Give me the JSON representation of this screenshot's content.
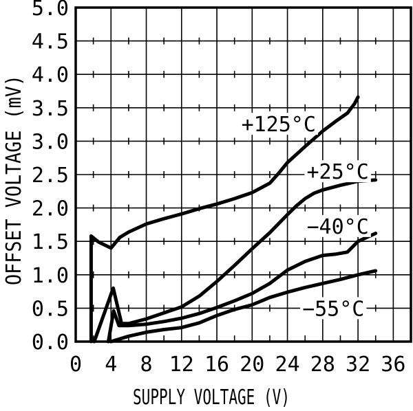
{
  "figure": {
    "background": "#ffffff",
    "ink": "#000000"
  },
  "chart_data": {
    "type": "line",
    "title": "",
    "xlabel": "SUPPLY VOLTAGE (V)",
    "ylabel": "OFFSET VOLTAGE (mV)",
    "xlim": [
      0,
      38
    ],
    "ylim": [
      0,
      5
    ],
    "grid": true,
    "legend_position": "inline-labels",
    "x_major_ticks": [
      0,
      4,
      8,
      12,
      16,
      20,
      24,
      28,
      32,
      36
    ],
    "x_tick_labels": [
      "0",
      "4",
      "8",
      "12",
      "16",
      "20",
      "24",
      "28",
      "32",
      "36"
    ],
    "x_minor_ticks": [
      2,
      6,
      10,
      14,
      18,
      22,
      26,
      30,
      34
    ],
    "y_major_ticks": [
      0,
      0.5,
      1,
      1.5,
      2,
      2.5,
      3,
      3.5,
      4,
      4.5,
      5
    ],
    "y_tick_labels": [
      "0.0",
      "0.5",
      "1.0",
      "1.5",
      "2.0",
      "2.5",
      "3.0",
      "3.5",
      "4.0",
      "4.5",
      "5.0"
    ],
    "series": [
      {
        "id": "plus-125c",
        "name": "+125°C",
        "label": "+125°C",
        "label_pos": {
          "x": 23.0,
          "y": 3.26
        },
        "points": [
          [
            1.75,
            0
          ],
          [
            1.75,
            1.58
          ],
          [
            2.6,
            1.49
          ],
          [
            4,
            1.4
          ],
          [
            5,
            1.56
          ],
          [
            6,
            1.64
          ],
          [
            8,
            1.76
          ],
          [
            10,
            1.84
          ],
          [
            12,
            1.91
          ],
          [
            14,
            1.99
          ],
          [
            16,
            2.06
          ],
          [
            18,
            2.14
          ],
          [
            20,
            2.23
          ],
          [
            22,
            2.37
          ],
          [
            23,
            2.52
          ],
          [
            24,
            2.68
          ],
          [
            26,
            2.92
          ],
          [
            28,
            3.15
          ],
          [
            29.5,
            3.3
          ],
          [
            30.8,
            3.42
          ],
          [
            31.6,
            3.56
          ],
          [
            32,
            3.66
          ]
        ]
      },
      {
        "id": "plus-25c",
        "name": "+25°C",
        "label": "+25°C",
        "label_pos": {
          "x": 29.7,
          "y": 2.55
        },
        "points": [
          [
            2.1,
            0
          ],
          [
            4.25,
            0.8
          ],
          [
            5.2,
            0.27
          ],
          [
            6,
            0.27
          ],
          [
            8,
            0.34
          ],
          [
            10,
            0.43
          ],
          [
            12,
            0.52
          ],
          [
            14,
            0.68
          ],
          [
            16,
            0.9
          ],
          [
            18,
            1.14
          ],
          [
            20,
            1.39
          ],
          [
            22,
            1.63
          ],
          [
            24,
            1.9
          ],
          [
            25,
            2.03
          ],
          [
            26,
            2.14
          ],
          [
            27,
            2.22
          ],
          [
            28,
            2.27
          ],
          [
            30,
            2.34
          ],
          [
            32,
            2.4
          ],
          [
            34,
            2.42
          ]
        ]
      },
      {
        "id": "minus-40c",
        "name": "−40°C",
        "label": "−40°C",
        "label_pos": {
          "x": 29.7,
          "y": 1.73
        },
        "points": [
          [
            3.7,
            0
          ],
          [
            4.3,
            0.46
          ],
          [
            4.9,
            0.24
          ],
          [
            6,
            0.24
          ],
          [
            8,
            0.26
          ],
          [
            10,
            0.3
          ],
          [
            12,
            0.35
          ],
          [
            14,
            0.42
          ],
          [
            16,
            0.51
          ],
          [
            18,
            0.61
          ],
          [
            20,
            0.72
          ],
          [
            22,
            0.87
          ],
          [
            24,
            1.07
          ],
          [
            26,
            1.2
          ],
          [
            28,
            1.29
          ],
          [
            29.5,
            1.31
          ],
          [
            30.8,
            1.34
          ],
          [
            32,
            1.5
          ],
          [
            34,
            1.62
          ]
        ]
      },
      {
        "id": "minus-55c",
        "name": "−55°C",
        "label": "−55°C",
        "label_pos": {
          "x": 29.2,
          "y": 0.5
        },
        "points": [
          [
            4,
            0
          ],
          [
            6,
            0.08
          ],
          [
            8,
            0.14
          ],
          [
            10,
            0.18
          ],
          [
            12,
            0.21
          ],
          [
            14,
            0.28
          ],
          [
            16,
            0.39
          ],
          [
            18,
            0.48
          ],
          [
            20,
            0.55
          ],
          [
            22,
            0.66
          ],
          [
            24,
            0.74
          ],
          [
            26,
            0.81
          ],
          [
            28,
            0.87
          ],
          [
            30,
            0.93
          ],
          [
            32,
            1.0
          ],
          [
            34,
            1.06
          ]
        ]
      }
    ]
  }
}
